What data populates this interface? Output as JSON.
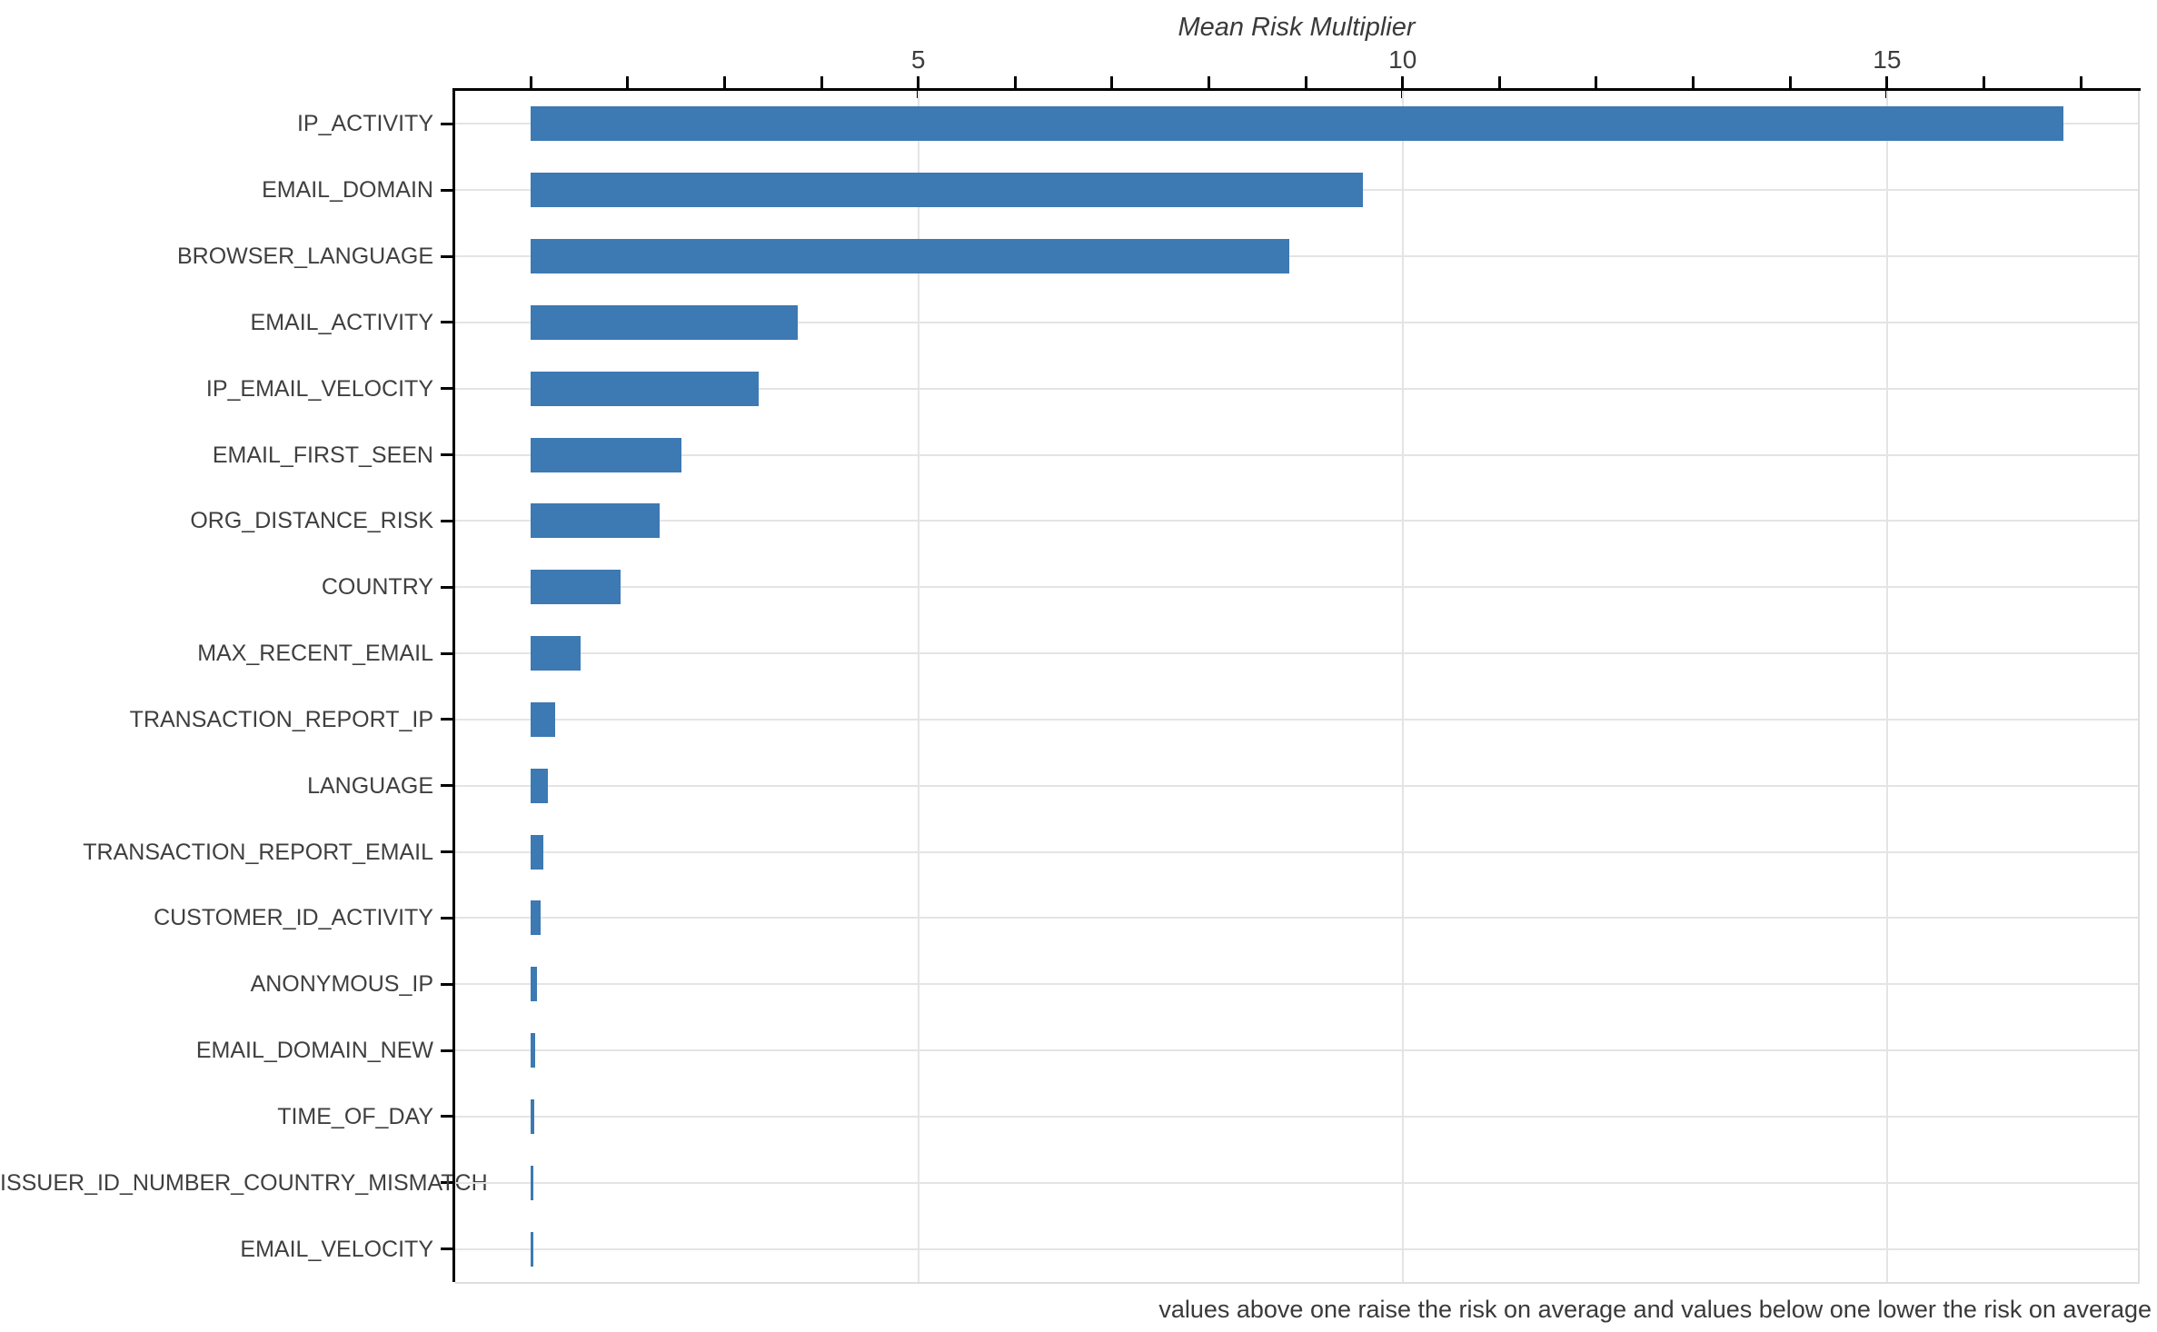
{
  "figure": {
    "title": "Mean Risk Multiplier",
    "caption": "values above one raise the risk on average and values below one lower the risk on average",
    "background": "#ffffff"
  },
  "colors": {
    "bar": "#3d79b2",
    "axis": "#000000",
    "grid": "#e4e4e4",
    "plot_edge": "#dedede",
    "text": "#3d3d3d"
  },
  "chart_data": {
    "type": "bar",
    "orientation": "horizontal",
    "title": "Mean Risk Multiplier",
    "xlabel": "Mean Risk Multiplier",
    "ylabel": "",
    "grid": true,
    "bar_baseline": 1,
    "x_axis": {
      "position": "top",
      "domain": [
        0.22,
        17.59
      ],
      "minor_ticks": [
        1,
        2,
        3,
        4,
        5,
        6,
        7,
        8,
        9,
        10,
        11,
        12,
        13,
        14,
        15,
        16,
        17
      ],
      "labeled_ticks": [
        5,
        10,
        15
      ],
      "tick_labels": [
        "5",
        "10",
        "15"
      ]
    },
    "categories": [
      "IP_ACTIVITY",
      "EMAIL_DOMAIN",
      "BROWSER_LANGUAGE",
      "EMAIL_ACTIVITY",
      "IP_EMAIL_VELOCITY",
      "EMAIL_FIRST_SEEN",
      "ORG_DISTANCE_RISK",
      "COUNTRY",
      "MAX_RECENT_EMAIL",
      "TRANSACTION_REPORT_IP",
      "LANGUAGE",
      "TRANSACTION_REPORT_EMAIL",
      "CUSTOMER_ID_ACTIVITY",
      "ANONYMOUS_IP",
      "EMAIL_DOMAIN_NEW",
      "TIME_OF_DAY",
      "ISSUER_ID_NUMBER_COUNTRY_MISMATCH",
      "EMAIL_VELOCITY"
    ],
    "values": [
      16.82,
      9.59,
      8.83,
      3.76,
      3.35,
      2.56,
      2.33,
      1.93,
      1.51,
      1.25,
      1.18,
      1.13,
      1.1,
      1.06,
      1.045,
      1.035,
      1.03,
      1.02
    ],
    "annotation": "values above one raise the risk on average and values below one lower the risk on average",
    "legend": null
  }
}
